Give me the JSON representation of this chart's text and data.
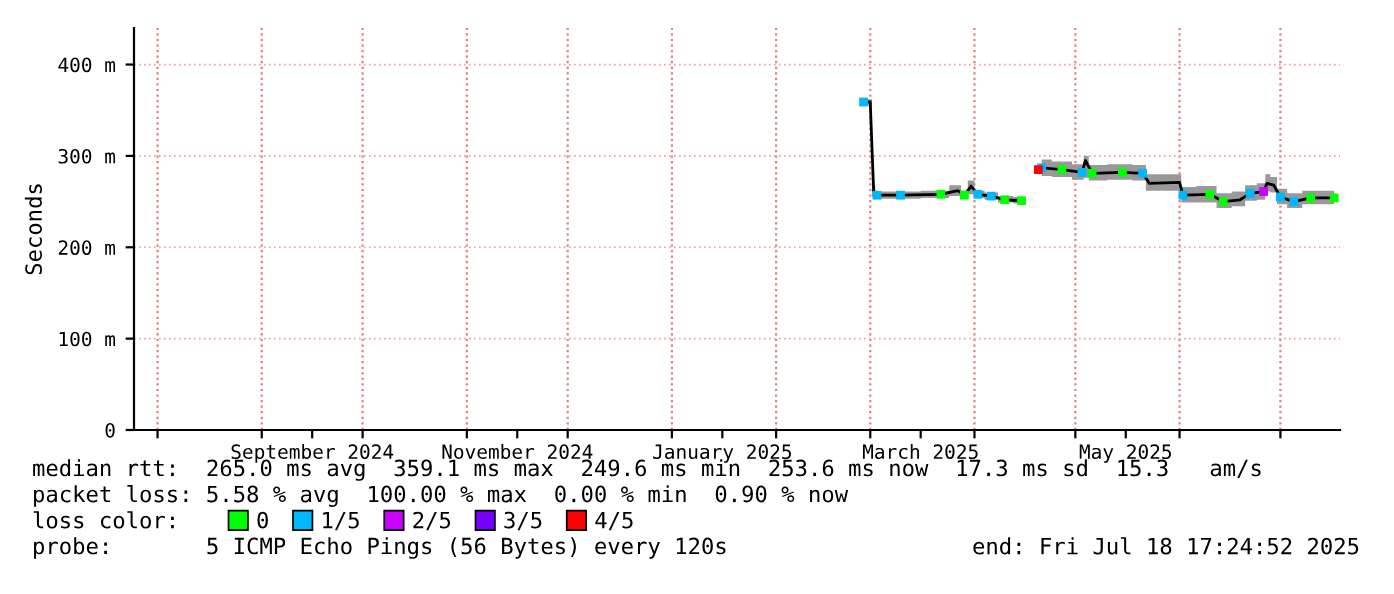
{
  "chart_data": {
    "type": "line",
    "ylabel": "Seconds",
    "xlim": [
      "2024-07-25",
      "2025-07-18T17:24"
    ],
    "ylim": [
      0,
      440
    ],
    "yticks": [
      {
        "value": 0,
        "label": "0"
      },
      {
        "value": 100,
        "label": "100 m"
      },
      {
        "value": 200,
        "label": "200 m"
      },
      {
        "value": 300,
        "label": "300 m"
      },
      {
        "value": 400,
        "label": "400 m"
      }
    ],
    "xticks": [
      {
        "value": "2024-08-01",
        "label": null
      },
      {
        "value": "2024-09-01",
        "label": null
      },
      {
        "value": "2024-10-01",
        "label": null
      },
      {
        "value": "2024-11-01",
        "label": null
      },
      {
        "value": "2024-12-01",
        "label": null
      },
      {
        "value": "2025-01-01",
        "label": null
      },
      {
        "value": "2025-02-01",
        "label": null
      },
      {
        "value": "2025-03-01",
        "label": null
      },
      {
        "value": "2025-04-01",
        "label": null
      },
      {
        "value": "2025-05-01",
        "label": null
      },
      {
        "value": "2025-06-01",
        "label": null
      },
      {
        "value": "2025-07-01",
        "label": null
      },
      {
        "value": "2024-09-16",
        "label": "September 2024"
      },
      {
        "value": "2024-11-16",
        "label": "November 2024"
      },
      {
        "value": "2025-01-16",
        "label": "January 2025"
      },
      {
        "value": "2025-03-16",
        "label": "March 2025"
      },
      {
        "value": "2025-05-16",
        "label": "May 2025"
      }
    ],
    "grid": true,
    "legend": "bottom",
    "legend_title": "loss color:",
    "series": [
      {
        "color": "#000000",
        "marker": "none",
        "x": [
          "2025-02-27",
          "2025-03-01",
          "2025-03-02",
          "2025-03-03",
          "2025-03-10",
          "2025-03-22",
          "2025-03-27",
          "2025-03-29",
          "2025-03-31",
          "2025-04-02",
          "2025-04-06",
          "2025-04-10",
          "2025-04-15",
          "2025-04-18",
          "2025-04-21",
          "2025-04-27",
          "2025-05-03",
          "2025-05-04",
          "2025-05-06",
          "2025-05-15",
          "2025-05-21",
          "2025-05-23",
          "2025-06-01",
          "2025-06-02",
          "2025-06-10",
          "2025-06-14",
          "2025-06-19",
          "2025-06-22",
          "2025-06-26",
          "2025-06-27",
          "2025-06-29",
          "2025-07-01",
          "2025-07-05",
          "2025-07-10",
          "2025-07-17"
        ],
        "values": [
          359,
          359,
          262,
          257,
          257,
          258,
          262,
          257,
          267,
          258,
          256,
          252,
          251,
          null,
          287,
          285,
          282,
          295,
          281,
          282,
          281,
          270,
          271,
          257,
          258,
          250,
          252,
          259,
          261,
          270,
          268,
          255,
          250,
          254,
          254
        ],
        "lower": [
          355,
          355,
          255,
          253,
          253,
          254,
          256,
          253,
          258,
          254,
          252,
          249,
          248,
          null,
          278,
          277,
          274,
          276,
          273,
          274,
          273,
          262,
          262,
          249,
          249,
          243,
          245,
          251,
          252,
          261,
          260,
          247,
          243,
          247,
          247
        ],
        "upper": [
          362,
          362,
          268,
          261,
          261,
          262,
          268,
          262,
          273,
          262,
          260,
          256,
          255,
          null,
          296,
          294,
          291,
          300,
          290,
          291,
          290,
          280,
          280,
          266,
          267,
          259,
          261,
          268,
          270,
          280,
          277,
          264,
          259,
          262,
          262
        ]
      },
      {
        "type": "scatter",
        "name": "0",
        "color": "#00ff00",
        "marker": "square",
        "x": [
          "2025-03-22",
          "2025-03-29",
          "2025-04-10",
          "2025-04-15",
          "2025-04-27",
          "2025-05-06",
          "2025-05-15",
          "2025-06-10",
          "2025-06-14",
          "2025-07-10",
          "2025-07-17"
        ],
        "values": [
          258,
          257,
          252,
          251,
          285,
          281,
          282,
          258,
          250,
          254,
          254
        ]
      },
      {
        "type": "scatter",
        "name": "1/5",
        "color": "#00b8ff",
        "marker": "square",
        "x": [
          "2025-02-27",
          "2025-03-03",
          "2025-03-10",
          "2025-04-02",
          "2025-04-06",
          "2025-04-21",
          "2025-05-03",
          "2025-05-21",
          "2025-06-02",
          "2025-06-22",
          "2025-07-01",
          "2025-07-05"
        ],
        "values": [
          359,
          257,
          257,
          258,
          256,
          287,
          282,
          281,
          257,
          259,
          255,
          250
        ]
      },
      {
        "type": "scatter",
        "name": "2/5",
        "color": "#cc00ff",
        "marker": "square",
        "x": [
          "2025-06-26"
        ],
        "values": [
          261
        ]
      },
      {
        "type": "scatter",
        "name": "3/5",
        "color": "#7700ff",
        "marker": "square"
      },
      {
        "type": "scatter",
        "name": "4/5",
        "color": "#ff0000",
        "marker": "square",
        "x": [
          "2025-04-20"
        ],
        "values": [
          285
        ]
      }
    ],
    "annotations": [
      "median rtt:  265.0 ms avg  359.1 ms max  249.6 ms min  253.6 ms now  17.3 ms sd  15.3   am/s",
      "packet loss: 5.58 % avg  100.00 % max  0.00 % min  0.90 % now",
      "probe:       5 ICMP Echo Pings (56 Bytes) every 120s",
      "end: Fri Jul 18 17:24:52 2025"
    ]
  }
}
